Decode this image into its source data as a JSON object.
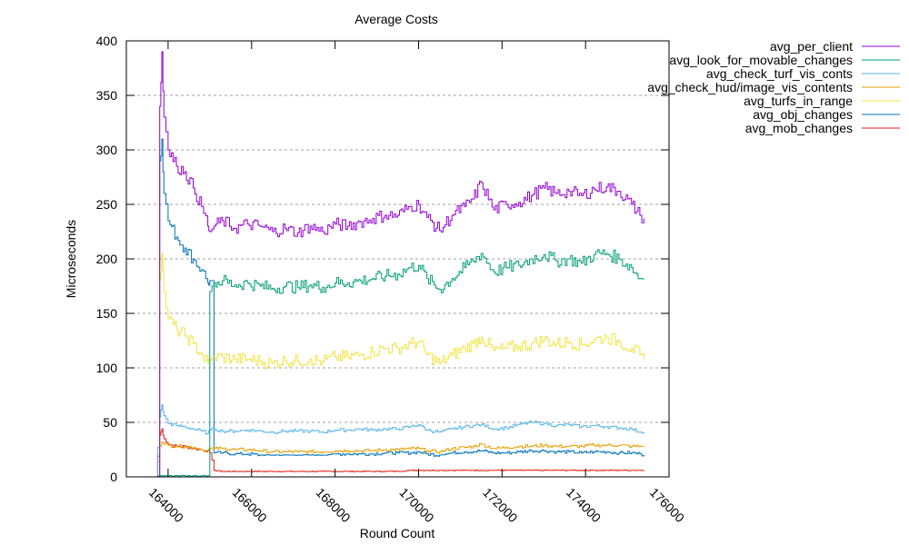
{
  "chart_data": {
    "type": "line",
    "title": "Average Costs",
    "xlabel": "Round Count",
    "ylabel": "Microseconds",
    "xlim": [
      163000,
      176000
    ],
    "ylim": [
      0,
      400
    ],
    "xticks": [
      164000,
      166000,
      168000,
      170000,
      172000,
      174000,
      176000
    ],
    "xtick_labels": [
      "164000",
      "166000",
      "168000",
      "170000",
      "172000",
      "174000",
      "176000"
    ],
    "yticks": [
      0,
      50,
      100,
      150,
      200,
      250,
      300,
      350,
      400
    ],
    "ytick_labels": [
      "0",
      "50",
      "100",
      "150",
      "200",
      "250",
      "300",
      "350",
      "400"
    ],
    "grid": "horizontal dashed",
    "legend_position": "top-right outside",
    "x": [
      163700,
      163800,
      163850,
      163900,
      164000,
      164200,
      164400,
      164600,
      164800,
      164950,
      165000,
      165100,
      165300,
      165600,
      165900,
      166200,
      166500,
      166800,
      167100,
      167400,
      167700,
      168000,
      168300,
      168600,
      168900,
      169200,
      169500,
      169800,
      170000,
      170200,
      170500,
      170800,
      171100,
      171300,
      171500,
      171800,
      172100,
      172400,
      172700,
      173000,
      173300,
      173600,
      173900,
      174200,
      174500,
      174800,
      175100,
      175300,
      175400
    ],
    "series": [
      {
        "name": "avg_per_client",
        "color": "#9400d3",
        "values": [
          0,
          340,
          390,
          330,
          300,
          285,
          280,
          265,
          248,
          230,
          225,
          230,
          235,
          228,
          232,
          230,
          225,
          228,
          224,
          230,
          225,
          232,
          230,
          234,
          237,
          240,
          240,
          248,
          250,
          238,
          226,
          240,
          248,
          255,
          270,
          245,
          250,
          252,
          258,
          265,
          260,
          262,
          258,
          264,
          266,
          262,
          250,
          240,
          237
        ]
      },
      {
        "name": "avg_look_for_movable_changes",
        "color": "#009e73",
        "values": [
          0,
          1,
          1,
          1,
          1,
          1,
          1,
          1,
          1,
          1,
          170,
          178,
          180,
          176,
          178,
          175,
          173,
          175,
          174,
          176,
          174,
          178,
          178,
          180,
          182,
          184,
          186,
          192,
          194,
          182,
          172,
          182,
          192,
          198,
          205,
          188,
          192,
          194,
          200,
          204,
          198,
          200,
          196,
          204,
          205,
          200,
          192,
          182,
          182
        ]
      },
      {
        "name": "avg_check_turf_vis_conts",
        "color": "#56b4e9",
        "values": [
          0,
          55,
          66,
          56,
          49,
          47,
          46,
          44,
          42,
          40,
          43,
          44,
          42,
          42,
          43,
          42,
          41,
          42,
          42,
          42,
          41,
          43,
          43,
          44,
          43,
          44,
          44,
          46,
          48,
          43,
          41,
          44,
          46,
          47,
          48,
          44,
          45,
          48,
          50,
          49,
          47,
          48,
          46,
          47,
          46,
          45,
          44,
          41,
          41
        ]
      },
      {
        "name": "avg_check_hud/image_vis_contents",
        "color": "#e69f00",
        "values": [
          0,
          28,
          32,
          30,
          29,
          28,
          28,
          27,
          25,
          24,
          26,
          26,
          26,
          25,
          25,
          24,
          23,
          23,
          23,
          23,
          23,
          24,
          24,
          24,
          24,
          25,
          25,
          26,
          26,
          24,
          23,
          26,
          27,
          28,
          30,
          26,
          27,
          28,
          28,
          29,
          28,
          28,
          28,
          29,
          29,
          29,
          28,
          28,
          28
        ]
      },
      {
        "name": "avg_turfs_in_range",
        "color": "#f0e442",
        "values": [
          0,
          180,
          205,
          170,
          145,
          135,
          130,
          122,
          112,
          104,
          107,
          110,
          110,
          108,
          108,
          106,
          104,
          107,
          106,
          108,
          106,
          110,
          110,
          112,
          115,
          118,
          118,
          122,
          124,
          112,
          104,
          112,
          118,
          122,
          128,
          116,
          118,
          120,
          122,
          126,
          122,
          124,
          121,
          126,
          128,
          124,
          118,
          112,
          108
        ]
      },
      {
        "name": "avg_obj_changes",
        "color": "#0072b2",
        "values": [
          0,
          290,
          310,
          260,
          235,
          220,
          210,
          200,
          190,
          178,
          180,
          22,
          22,
          21,
          21,
          20,
          20,
          20,
          20,
          20,
          20,
          21,
          21,
          21,
          21,
          22,
          22,
          22,
          23,
          21,
          20,
          22,
          23,
          23,
          24,
          22,
          22,
          23,
          24,
          24,
          23,
          23,
          22,
          23,
          23,
          22,
          22,
          21,
          20
        ]
      },
      {
        "name": "avg_mob_changes",
        "color": "#e51e10",
        "values": [
          0,
          38,
          44,
          35,
          30,
          28,
          28,
          26,
          25,
          24,
          22,
          6,
          5,
          5,
          5,
          5,
          5,
          5,
          5,
          5,
          5,
          5,
          5,
          5,
          5,
          5,
          5,
          6,
          6,
          6,
          6,
          6,
          6,
          6,
          6,
          6,
          6,
          6,
          6,
          6,
          6,
          6,
          6,
          6,
          6,
          6,
          6,
          6,
          6
        ]
      }
    ]
  }
}
